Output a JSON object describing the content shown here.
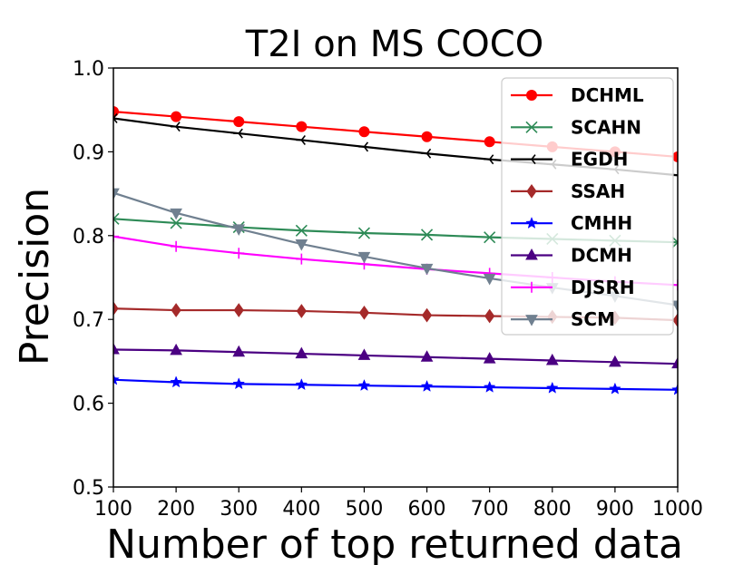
{
  "chart_data": {
    "type": "line",
    "title": "T2I on MS COCO",
    "xlabel": "Number of top returned data",
    "ylabel": "Precision",
    "x": [
      100,
      200,
      300,
      400,
      500,
      600,
      700,
      800,
      900,
      1000
    ],
    "xlim": [
      100,
      1000
    ],
    "ylim": [
      0.5,
      1.0
    ],
    "xticks": [
      "100",
      "200",
      "300",
      "400",
      "500",
      "600",
      "700",
      "800",
      "900",
      "1000"
    ],
    "yticks": [
      "0.5",
      "0.6",
      "0.7",
      "0.8",
      "0.9",
      "1.0"
    ],
    "legend_position": "top-right",
    "series": [
      {
        "name": "DCHML",
        "color": "#ff0000",
        "marker": "circle",
        "values": [
          0.948,
          0.942,
          0.936,
          0.93,
          0.924,
          0.918,
          0.912,
          0.906,
          0.9,
          0.894
        ]
      },
      {
        "name": "SCAHN",
        "color": "#2e8b57",
        "marker": "x",
        "values": [
          0.82,
          0.815,
          0.81,
          0.806,
          0.803,
          0.801,
          0.798,
          0.796,
          0.794,
          0.792
        ]
      },
      {
        "name": "EGDH",
        "color": "#000000",
        "marker": "tri-left",
        "values": [
          0.94,
          0.93,
          0.922,
          0.914,
          0.906,
          0.898,
          0.891,
          0.885,
          0.879,
          0.872
        ]
      },
      {
        "name": "SSAH",
        "color": "#a52a2a",
        "marker": "diamond",
        "values": [
          0.713,
          0.711,
          0.711,
          0.71,
          0.708,
          0.705,
          0.704,
          0.703,
          0.702,
          0.699
        ]
      },
      {
        "name": "CMHH",
        "color": "#0000ff",
        "marker": "star",
        "values": [
          0.628,
          0.625,
          0.623,
          0.622,
          0.621,
          0.62,
          0.619,
          0.618,
          0.617,
          0.616
        ]
      },
      {
        "name": "DCMH",
        "color": "#4b0082",
        "marker": "triangle-up",
        "values": [
          0.664,
          0.663,
          0.661,
          0.659,
          0.657,
          0.655,
          0.653,
          0.651,
          0.649,
          0.647
        ]
      },
      {
        "name": "DJSRH",
        "color": "#ff00ff",
        "marker": "plus",
        "values": [
          0.799,
          0.787,
          0.779,
          0.772,
          0.766,
          0.76,
          0.755,
          0.75,
          0.745,
          0.741
        ]
      },
      {
        "name": "SCM",
        "color": "#708090",
        "marker": "triangle-down",
        "values": [
          0.851,
          0.827,
          0.808,
          0.79,
          0.775,
          0.761,
          0.749,
          0.738,
          0.728,
          0.717
        ]
      }
    ]
  }
}
